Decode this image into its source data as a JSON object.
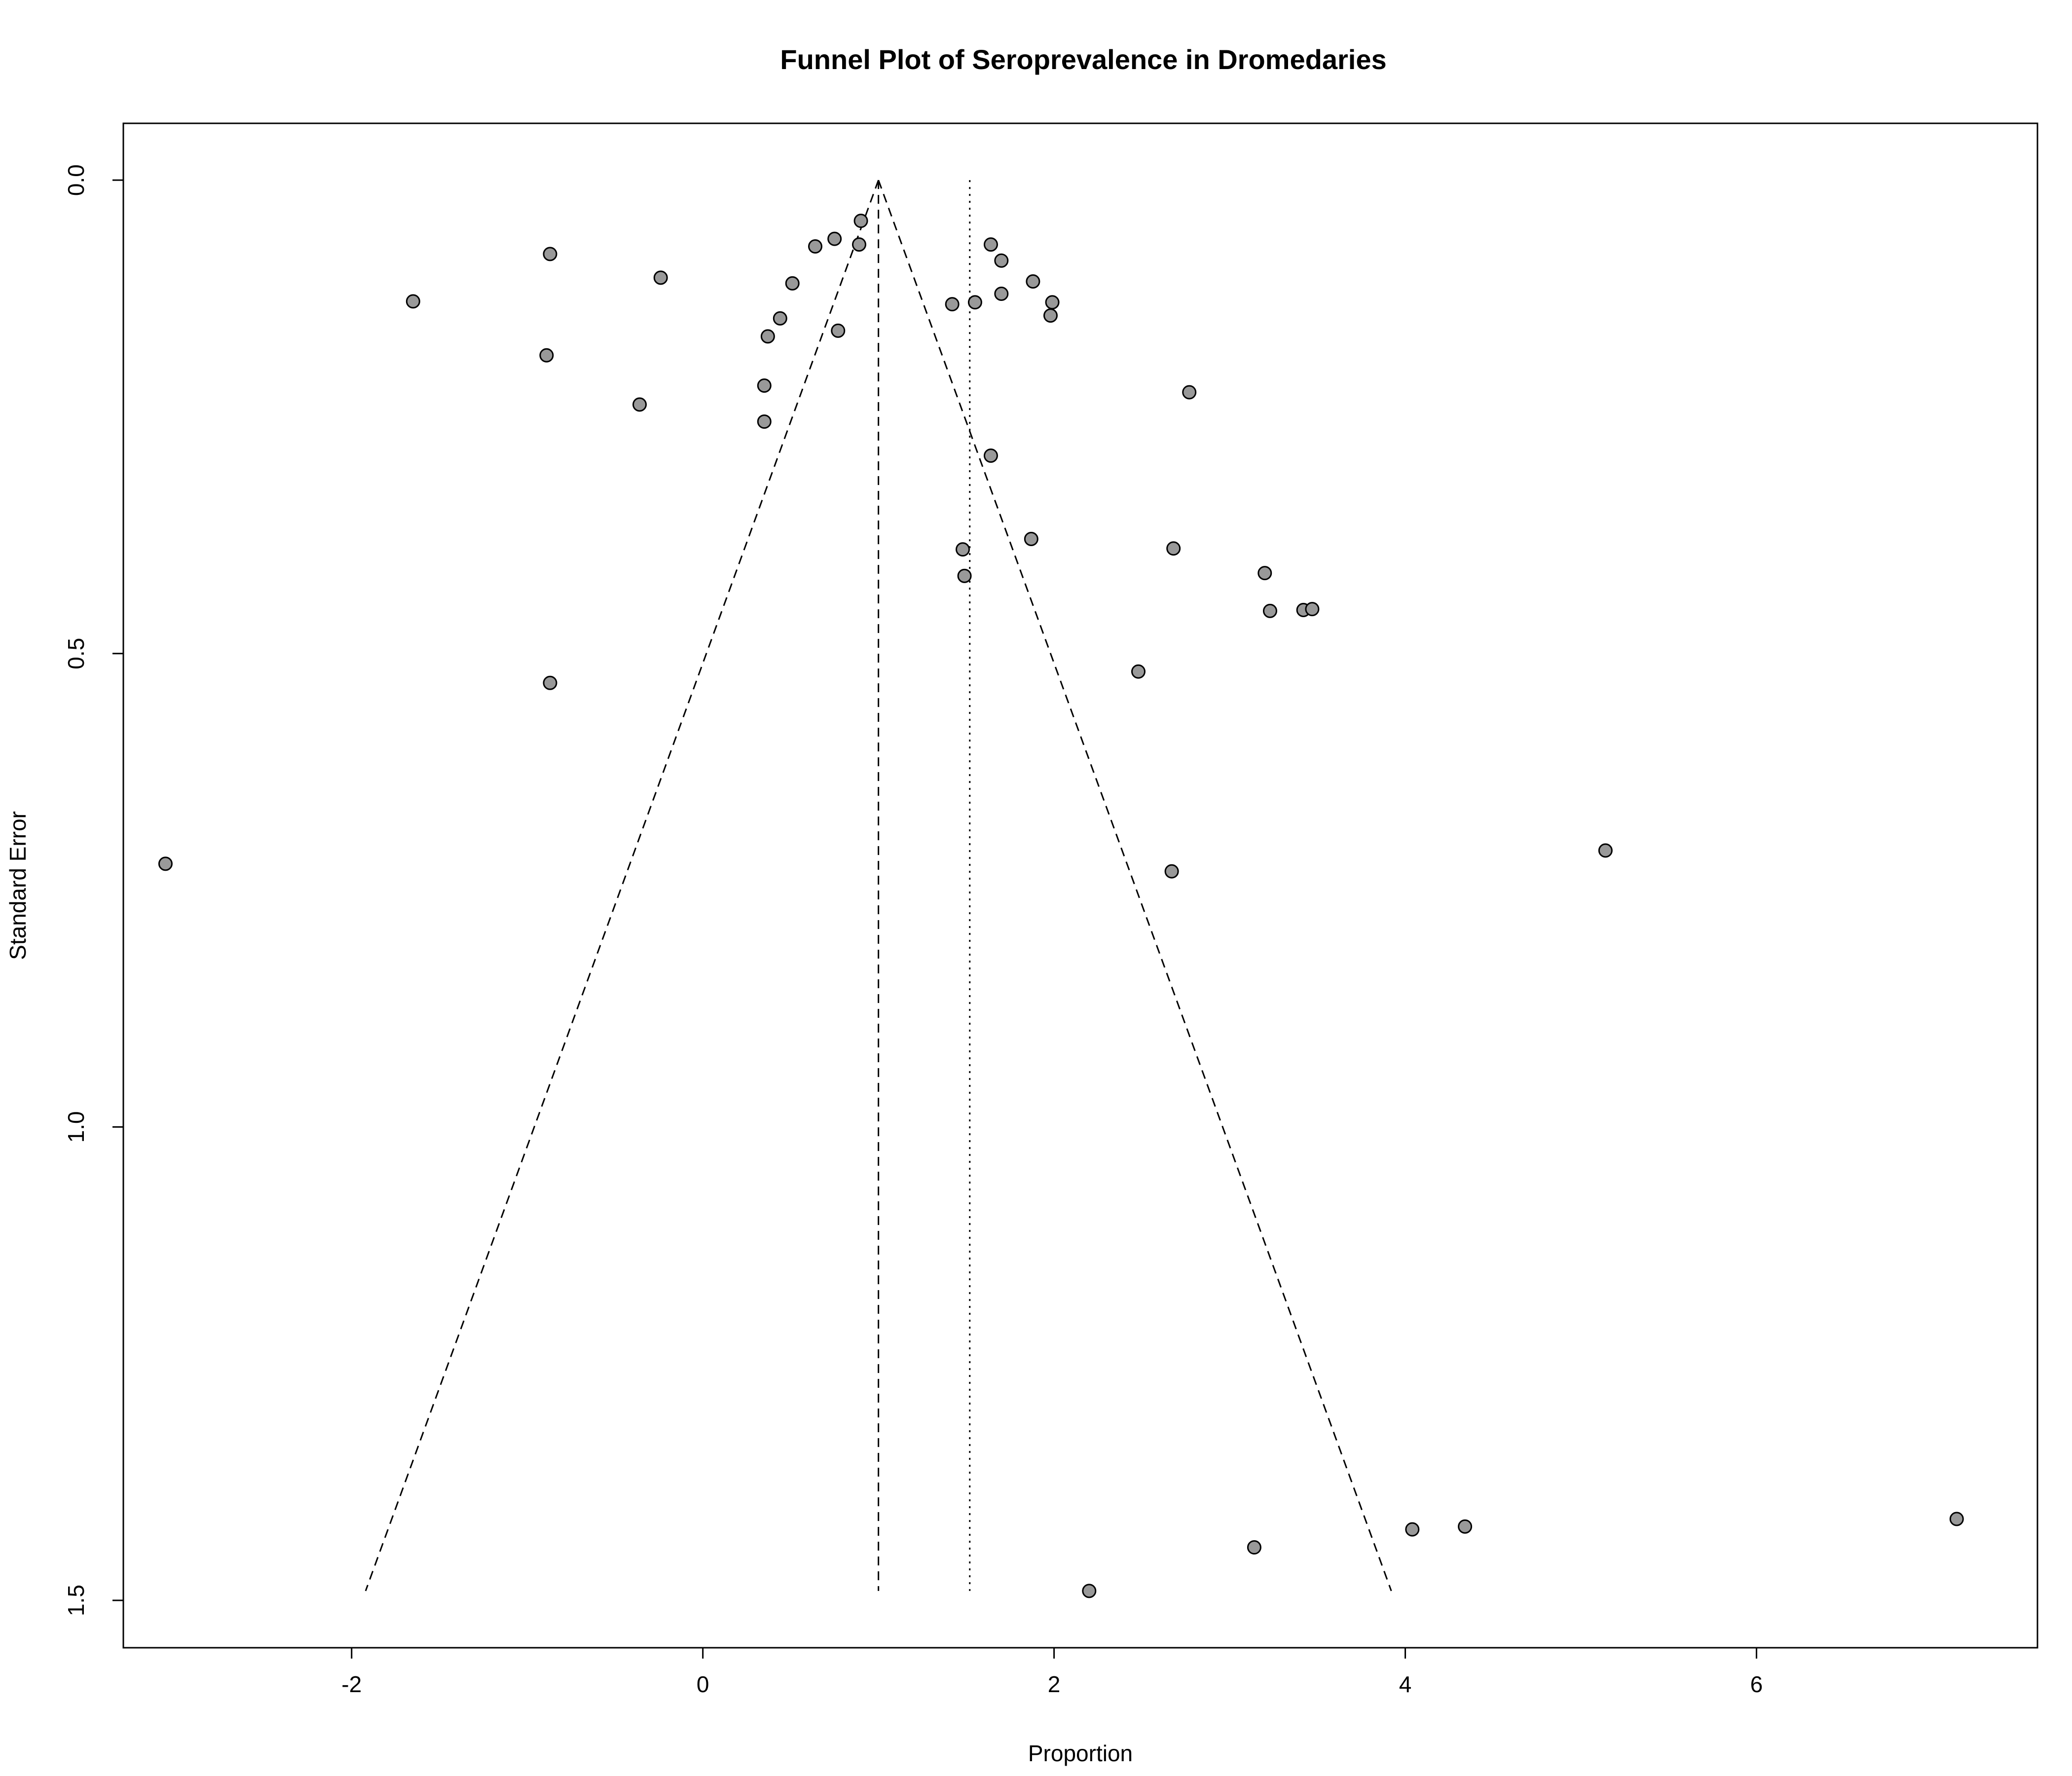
{
  "chart_data": {
    "type": "scatter",
    "title": "Funnel Plot of Seroprevalence in Dromedaries",
    "xlabel": "Proportion",
    "ylabel": "Standard Error",
    "xlim": [
      -3.3,
      7.6
    ],
    "ylim": [
      1.55,
      -0.06
    ],
    "y_reversed": true,
    "x_ticks": [
      -2,
      0,
      2,
      4,
      6
    ],
    "x_tick_labels": [
      "-2",
      "0",
      "2",
      "4",
      "6"
    ],
    "y_ticks": [
      0.0,
      0.5,
      1.0,
      1.5
    ],
    "y_tick_labels": [
      "0.0",
      "0.5",
      "1.0",
      "1.5"
    ],
    "grid": false,
    "legend": "none",
    "funnel_center": 1.0,
    "funnel_max_se": 1.49,
    "pooled_estimate": 1.52,
    "point_color": "#999999",
    "points": [
      {
        "x": 0.9,
        "y": 0.043
      },
      {
        "x": 0.75,
        "y": 0.062
      },
      {
        "x": 0.64,
        "y": 0.07
      },
      {
        "x": 0.89,
        "y": 0.068
      },
      {
        "x": -0.87,
        "y": 0.078
      },
      {
        "x": -0.24,
        "y": 0.103
      },
      {
        "x": 0.51,
        "y": 0.109
      },
      {
        "x": -1.65,
        "y": 0.128
      },
      {
        "x": 0.44,
        "y": 0.146
      },
      {
        "x": 0.37,
        "y": 0.165
      },
      {
        "x": 0.77,
        "y": 0.159
      },
      {
        "x": -0.89,
        "y": 0.185
      },
      {
        "x": 0.35,
        "y": 0.217
      },
      {
        "x": -0.36,
        "y": 0.237
      },
      {
        "x": 0.35,
        "y": 0.255
      },
      {
        "x": 1.64,
        "y": 0.068
      },
      {
        "x": 1.7,
        "y": 0.085
      },
      {
        "x": 1.88,
        "y": 0.107
      },
      {
        "x": 1.7,
        "y": 0.12
      },
      {
        "x": 1.42,
        "y": 0.131
      },
      {
        "x": 1.55,
        "y": 0.129
      },
      {
        "x": 1.99,
        "y": 0.129
      },
      {
        "x": 1.98,
        "y": 0.143
      },
      {
        "x": 2.77,
        "y": 0.224
      },
      {
        "x": 1.64,
        "y": 0.291
      },
      {
        "x": 1.87,
        "y": 0.379
      },
      {
        "x": 1.48,
        "y": 0.39
      },
      {
        "x": 2.68,
        "y": 0.389
      },
      {
        "x": 1.49,
        "y": 0.418
      },
      {
        "x": 3.2,
        "y": 0.415
      },
      {
        "x": 3.23,
        "y": 0.455
      },
      {
        "x": 3.42,
        "y": 0.454
      },
      {
        "x": 3.47,
        "y": 0.453
      },
      {
        "x": 2.48,
        "y": 0.519
      },
      {
        "x": -0.87,
        "y": 0.531
      },
      {
        "x": -3.06,
        "y": 0.722
      },
      {
        "x": 2.67,
        "y": 0.73
      },
      {
        "x": 5.14,
        "y": 0.708
      },
      {
        "x": 7.14,
        "y": 1.414
      },
      {
        "x": 4.34,
        "y": 1.422
      },
      {
        "x": 4.04,
        "y": 1.425
      },
      {
        "x": 3.14,
        "y": 1.444
      },
      {
        "x": 2.2,
        "y": 1.49
      }
    ]
  }
}
